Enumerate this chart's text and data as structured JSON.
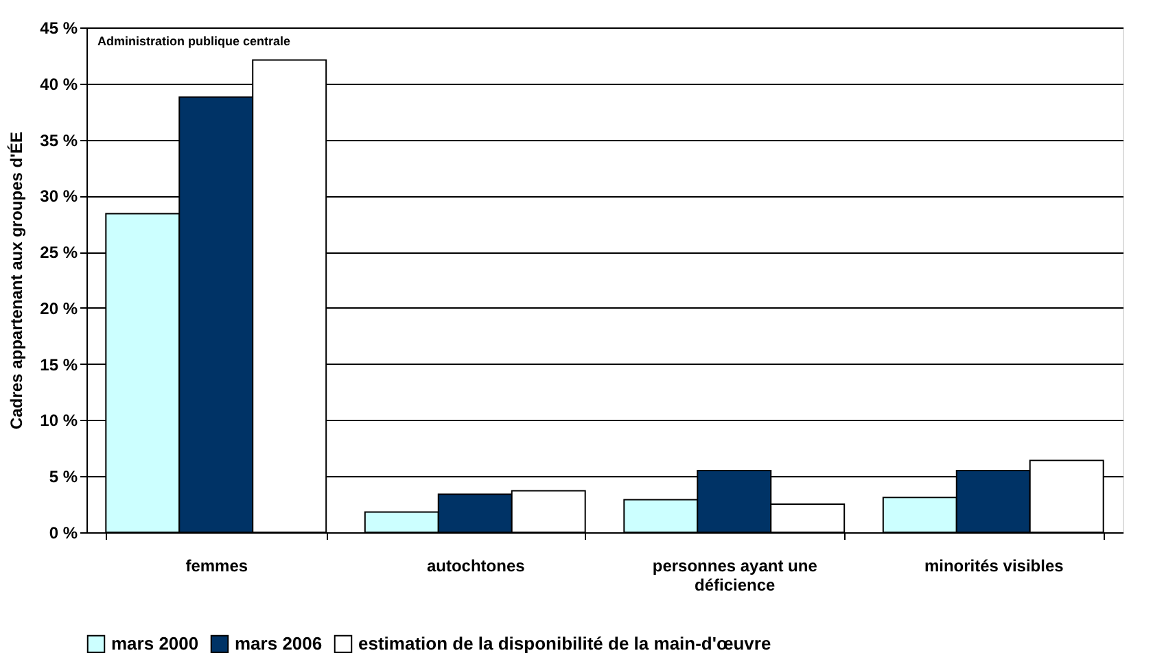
{
  "chart_data": {
    "type": "bar",
    "ylabel": "Cadres appartenant aux groupes d'ÉE",
    "annotations": [
      "Administration publique centrale"
    ],
    "categories": [
      "femmes",
      "autochtones",
      "personnes ayant une déficience",
      "minorités visibles"
    ],
    "series": [
      {
        "name": "mars 2000",
        "color": "#ccffff",
        "values": [
          28.4,
          1.8,
          2.9,
          3.1
        ]
      },
      {
        "name": "mars 2006",
        "color": "#003366",
        "values": [
          38.8,
          3.4,
          5.5,
          5.5
        ]
      },
      {
        "name": "estimation de la disponibilité de la main-d'œuvre",
        "color": "#ffffff",
        "values": [
          42.1,
          3.7,
          2.5,
          6.4
        ]
      }
    ],
    "ylim": [
      0,
      45
    ],
    "yticks": [
      {
        "value": 0,
        "label": "0 %"
      },
      {
        "value": 5,
        "label": "5 %"
      },
      {
        "value": 10,
        "label": "10 %"
      },
      {
        "value": 15,
        "label": "15 %"
      },
      {
        "value": 20,
        "label": "20 %"
      },
      {
        "value": 25,
        "label": "25 %"
      },
      {
        "value": 30,
        "label": "30 %"
      },
      {
        "value": 35,
        "label": "35 %"
      },
      {
        "value": 40,
        "label": "40 %"
      },
      {
        "value": 45,
        "label": "45 %"
      }
    ],
    "grid": "y",
    "legend": "bottom"
  }
}
